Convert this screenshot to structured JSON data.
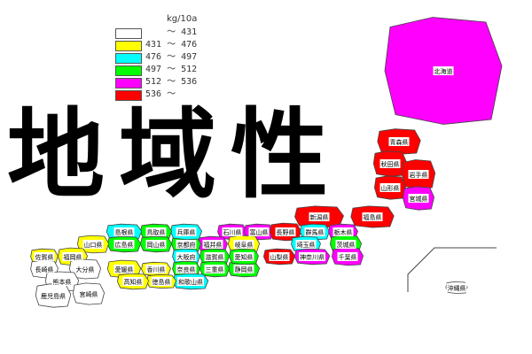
{
  "legend": {
    "unit": "kg/10a",
    "classes": [
      {
        "label": "    ～ 431",
        "color": "#ffffff"
      },
      {
        "label": "431 ～ 476",
        "color": "#ffff00"
      },
      {
        "label": "476 ～ 497",
        "color": "#00ffff"
      },
      {
        "label": "497 ～ 512",
        "color": "#00ff00"
      },
      {
        "label": "512 ～ 536",
        "color": "#ff00ff"
      },
      {
        "label": "536 ～",
        "color": "#ff0000"
      }
    ]
  },
  "title": "地域性",
  "prefectures": [
    {
      "name": "北海道",
      "class": 4
    },
    {
      "name": "青森県",
      "class": 5
    },
    {
      "name": "秋田県",
      "class": 5
    },
    {
      "name": "岩手県",
      "class": 5
    },
    {
      "name": "山形県",
      "class": 5
    },
    {
      "name": "宮城県",
      "class": 4
    },
    {
      "name": "新潟県",
      "class": 5
    },
    {
      "name": "福島県",
      "class": 5
    },
    {
      "name": "石川県",
      "class": 4
    },
    {
      "name": "富山県",
      "class": 4
    },
    {
      "name": "福井県",
      "class": 4
    },
    {
      "name": "岐阜県",
      "class": 1
    },
    {
      "name": "長野県",
      "class": 5
    },
    {
      "name": "群馬県",
      "class": 2
    },
    {
      "name": "栃木県",
      "class": 4
    },
    {
      "name": "埼玉県",
      "class": 2
    },
    {
      "name": "茨城県",
      "class": 3
    },
    {
      "name": "山梨県",
      "class": 5
    },
    {
      "name": "神奈川県",
      "class": 4
    },
    {
      "name": "千葉県",
      "class": 4
    },
    {
      "name": "静岡県",
      "class": 3
    },
    {
      "name": "愛知県",
      "class": 3
    },
    {
      "name": "滋賀県",
      "class": 3
    },
    {
      "name": "京都府",
      "class": 3
    },
    {
      "name": "兵庫県",
      "class": 2
    },
    {
      "name": "大阪府",
      "class": 2
    },
    {
      "name": "奈良県",
      "class": 3
    },
    {
      "name": "三重県",
      "class": 3
    },
    {
      "name": "和歌山県",
      "class": 2
    },
    {
      "name": "鳥取県",
      "class": 3
    },
    {
      "name": "島根県",
      "class": 2
    },
    {
      "name": "岡山県",
      "class": 3
    },
    {
      "name": "広島県",
      "class": 3
    },
    {
      "name": "山口県",
      "class": 1
    },
    {
      "name": "香川県",
      "class": 1
    },
    {
      "name": "徳島県",
      "class": 1
    },
    {
      "name": "愛媛県",
      "class": 1
    },
    {
      "name": "高知県",
      "class": 1
    },
    {
      "name": "福岡県",
      "class": 1
    },
    {
      "name": "佐賀県",
      "class": 1
    },
    {
      "name": "長崎県",
      "class": 0
    },
    {
      "name": "大分県",
      "class": 0
    },
    {
      "name": "熊本県",
      "class": 0
    },
    {
      "name": "宮崎県",
      "class": 0
    },
    {
      "name": "鹿児島県",
      "class": 0
    },
    {
      "name": "沖縄県",
      "class": 0
    }
  ]
}
